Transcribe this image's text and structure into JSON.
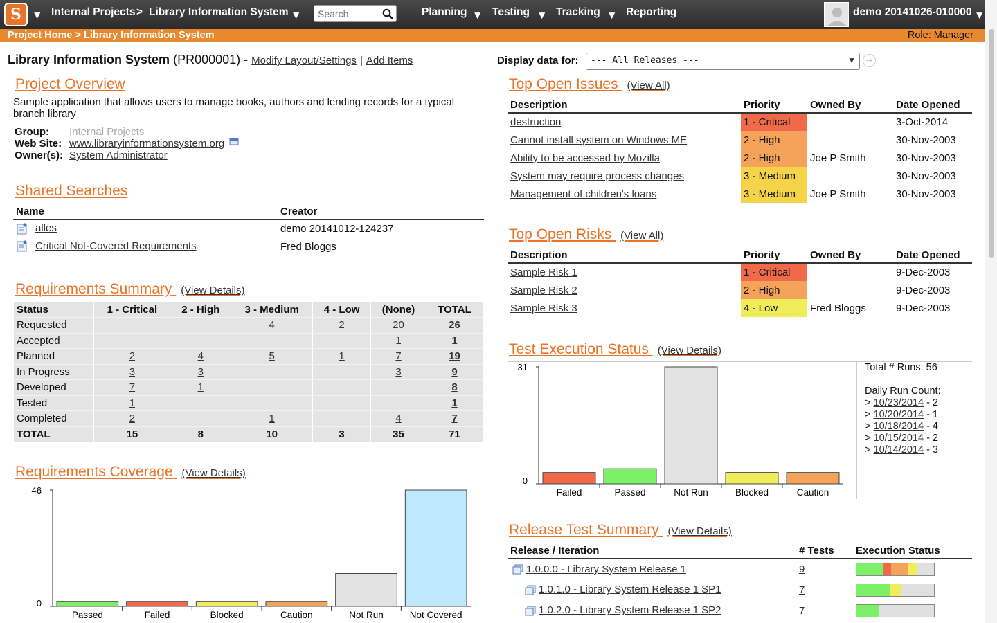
{
  "nav": {
    "logo_letter": "S",
    "project": "Internal Projects",
    "separator": ">",
    "product": "Library Information System",
    "search_placeholder": "Search",
    "menus": [
      "Planning",
      "Testing",
      "Tracking",
      "Reporting"
    ],
    "user": "demo 20141026-010000"
  },
  "crumbbar": {
    "breadcrumb": "Project Home > Library Information System",
    "role": "Role: Manager"
  },
  "project": {
    "name": "Library Information System",
    "id": "(PR000001)",
    "dash": "-",
    "modify_link": "Modify Layout/Settings",
    "pipe": "|",
    "add_link": "Add Items"
  },
  "display": {
    "label": "Display data for:",
    "selected": "--- All Releases ---"
  },
  "overview": {
    "title": "Project Overview",
    "description": "Sample application that allows users to manage books, authors and lending records for a typical branch library",
    "group_label": "Group:",
    "group_value": "Internal Projects",
    "website_label": "Web Site:",
    "website_value": "www.libraryinformationsystem.org",
    "owner_label": "Owner(s):",
    "owner_value": "System Administrator"
  },
  "shared_searches": {
    "title": "Shared Searches",
    "headers": [
      "Name",
      "Creator"
    ],
    "rows": [
      {
        "name": "alles",
        "creator": "demo 20141012-124237"
      },
      {
        "name": "Critical Not-Covered Requirements",
        "creator": "Fred Bloggs"
      }
    ]
  },
  "req_summary": {
    "title": "Requirements Summary",
    "view": "(View Details)",
    "headers": [
      "Status",
      "1 - Critical",
      "2 - High",
      "3 - Medium",
      "4 - Low",
      "(None)",
      "TOTAL"
    ],
    "rows": [
      [
        "Requested",
        "",
        "",
        "4",
        "2",
        "20",
        "26"
      ],
      [
        "Accepted",
        "",
        "",
        "",
        "",
        "1",
        "1"
      ],
      [
        "Planned",
        "2",
        "4",
        "5",
        "1",
        "7",
        "19"
      ],
      [
        "In Progress",
        "3",
        "3",
        "",
        "",
        "3",
        "9"
      ],
      [
        "Developed",
        "7",
        "1",
        "",
        "",
        "",
        "8"
      ],
      [
        "Tested",
        "1",
        "",
        "",
        "",
        "",
        "1"
      ],
      [
        "Completed",
        "2",
        "",
        "1",
        "",
        "4",
        "7"
      ],
      [
        "TOTAL",
        "15",
        "8",
        "10",
        "3",
        "35",
        "71"
      ]
    ]
  },
  "req_coverage": {
    "title": "Requirements Coverage",
    "view": "(View Details)",
    "y_max_label": "46",
    "y_min_label": "0"
  },
  "top_issues": {
    "title": "Top Open Issues",
    "view": "(View All)",
    "headers": [
      "Description",
      "Priority",
      "Owned By",
      "Date Opened"
    ],
    "rows": [
      {
        "desc": "destruction",
        "priority": "1 - Critical",
        "level": 1,
        "owner": "",
        "date": "3-Oct-2014"
      },
      {
        "desc": "Cannot install system on Windows ME",
        "priority": "2 - High",
        "level": 2,
        "owner": "",
        "date": "30-Nov-2003"
      },
      {
        "desc": "Ability to be accessed by Mozilla",
        "priority": "2 - High",
        "level": 2,
        "owner": "Joe P Smith",
        "date": "30-Nov-2003"
      },
      {
        "desc": "System may require process changes",
        "priority": "3 - Medium",
        "level": 3,
        "owner": "",
        "date": "30-Nov-2003"
      },
      {
        "desc": "Management of children's loans",
        "priority": "3 - Medium",
        "level": 3,
        "owner": "Joe P Smith",
        "date": "30-Nov-2003"
      }
    ]
  },
  "top_risks": {
    "title": "Top Open Risks",
    "view": "(View All)",
    "headers": [
      "Description",
      "Priority",
      "Owned By",
      "Date Opened"
    ],
    "rows": [
      {
        "desc": "Sample Risk 1",
        "priority": "1 - Critical",
        "level": 1,
        "owner": "",
        "date": "9-Dec-2003"
      },
      {
        "desc": "Sample Risk 2",
        "priority": "2 - High",
        "level": 2,
        "owner": "",
        "date": "9-Dec-2003"
      },
      {
        "desc": "Sample Risk 3",
        "priority": "4 - Low",
        "level": 4,
        "owner": "Fred Bloggs",
        "date": "9-Dec-2003"
      }
    ]
  },
  "test_exec": {
    "title": "Test Execution Status",
    "view": "(View Details)",
    "y_max_label": "31",
    "y_min_label": "0",
    "total_runs": "Total # Runs: 56",
    "daily_label": "Daily Run Count:",
    "daily": [
      {
        "date": "10/23/2014",
        "count": "- 2"
      },
      {
        "date": "10/20/2014",
        "count": "- 1"
      },
      {
        "date": "10/18/2014",
        "count": "- 4"
      },
      {
        "date": "10/15/2014",
        "count": "- 2"
      },
      {
        "date": "10/14/2014",
        "count": "- 3"
      }
    ]
  },
  "release_summary": {
    "title": "Release Test Summary",
    "view": "(View Details)",
    "headers": [
      "Release / Iteration",
      "# Tests",
      "Execution Status"
    ],
    "rows": [
      {
        "name": "1.0.0.0 - Library System Release 1",
        "tests": "9",
        "indent": 0,
        "status": [
          {
            "frac": 0.34,
            "color": "#7df06a"
          },
          {
            "frac": 0.11,
            "color": "#f06a4a"
          },
          {
            "frac": 0.22,
            "color": "#f5a35a"
          },
          {
            "frac": 0.11,
            "color": "#f0ec5a"
          },
          {
            "frac": 0.22,
            "color": "#e0e0e0"
          }
        ]
      },
      {
        "name": "1.0.1.0 - Library System Release 1 SP1",
        "tests": "7",
        "indent": 1,
        "status": [
          {
            "frac": 0.43,
            "color": "#7df06a"
          },
          {
            "frac": 0.14,
            "color": "#f0ec5a"
          },
          {
            "frac": 0.43,
            "color": "#e0e0e0"
          }
        ]
      },
      {
        "name": "1.0.2.0 - Library System Release 1 SP2",
        "tests": "7",
        "indent": 1,
        "status": [
          {
            "frac": 0.29,
            "color": "#7df06a"
          },
          {
            "frac": 0.71,
            "color": "#e0e0e0"
          }
        ]
      }
    ]
  },
  "chart_data": [
    {
      "type": "bar",
      "title": "Requirements Coverage",
      "categories": [
        "Passed",
        "Failed",
        "Blocked",
        "Caution",
        "Not Run",
        "Not Covered"
      ],
      "values": [
        2,
        2,
        2,
        2,
        13,
        46
      ],
      "colors": [
        "#7df06a",
        "#f06a4a",
        "#f0ec5a",
        "#f5a35a",
        "#e3e3e3",
        "#bfe8ff"
      ],
      "ylim": [
        0,
        46
      ]
    },
    {
      "type": "bar",
      "title": "Test Execution Status",
      "categories": [
        "Failed",
        "Passed",
        "Not Run",
        "Blocked",
        "Caution"
      ],
      "values": [
        3,
        4,
        31,
        3,
        3
      ],
      "colors": [
        "#f06a4a",
        "#7df06a",
        "#e3e3e3",
        "#f0ec5a",
        "#f5a35a"
      ],
      "ylim": [
        0,
        31
      ]
    }
  ]
}
